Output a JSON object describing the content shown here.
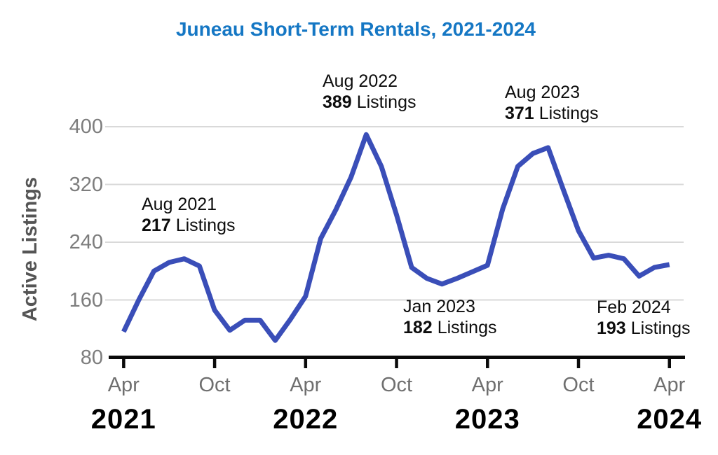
{
  "title": {
    "text": "Juneau Short-Term Rentals, 2021-2024",
    "color": "#1577C4"
  },
  "chart_data": {
    "type": "line",
    "title": "Juneau Short-Term Rentals, 2021-2024",
    "xlabel": "",
    "ylabel": "Active Listings",
    "ylim": [
      80,
      400
    ],
    "yticks": [
      400,
      320,
      240,
      160,
      80
    ],
    "grid": "horizontal",
    "legend": "none",
    "line_color": "#3A4EB8",
    "grid_color": "#d9d9d9",
    "axis_color": "#0a0a0a",
    "x": [
      "Apr 2021",
      "May 2021",
      "Jun 2021",
      "Jul 2021",
      "Aug 2021",
      "Sep 2021",
      "Oct 2021",
      "Nov 2021",
      "Dec 2021",
      "Jan 2022",
      "Feb 2022",
      "Mar 2022",
      "Apr 2022",
      "May 2022",
      "Jun 2022",
      "Jul 2022",
      "Aug 2022",
      "Sep 2022",
      "Oct 2022",
      "Nov 2022",
      "Dec 2022",
      "Jan 2023",
      "Feb 2023",
      "Mar 2023",
      "Apr 2023",
      "May 2023",
      "Jun 2023",
      "Jul 2023",
      "Aug 2023",
      "Sep 2023",
      "Oct 2023",
      "Nov 2023",
      "Dec 2023",
      "Jan 2024",
      "Feb 2024",
      "Mar 2024",
      "Apr 2024"
    ],
    "values": [
      116,
      160,
      200,
      212,
      217,
      207,
      146,
      118,
      132,
      132,
      104,
      133,
      165,
      245,
      285,
      330,
      389,
      345,
      278,
      205,
      190,
      182,
      190,
      199,
      208,
      286,
      345,
      363,
      371,
      313,
      256,
      218,
      222,
      217,
      193,
      205,
      209
    ],
    "xticks": [
      {
        "label": "Apr",
        "month": 0
      },
      {
        "label": "Oct",
        "month": 6
      },
      {
        "label": "Apr",
        "month": 12
      },
      {
        "label": "Oct",
        "month": 18
      },
      {
        "label": "Apr",
        "month": 24
      },
      {
        "label": "Oct",
        "month": 30
      },
      {
        "label": "Apr",
        "month": 36
      }
    ],
    "year_labels": [
      {
        "label": "2021",
        "month": 0
      },
      {
        "label": "2022",
        "month": 12
      },
      {
        "label": "2023",
        "month": 24
      },
      {
        "label": "2024",
        "month": 36
      }
    ],
    "annotations": [
      {
        "date": "Aug 2021",
        "value": "217",
        "suffix": "Listings"
      },
      {
        "date": "Aug 2022",
        "value": "389",
        "suffix": "Listings"
      },
      {
        "date": "Jan 2023",
        "value": "182",
        "suffix": "Listings"
      },
      {
        "date": "Aug 2023",
        "value": "371",
        "suffix": "Listings"
      },
      {
        "date": "Feb 2024",
        "value": "193",
        "suffix": "Listings"
      }
    ]
  }
}
